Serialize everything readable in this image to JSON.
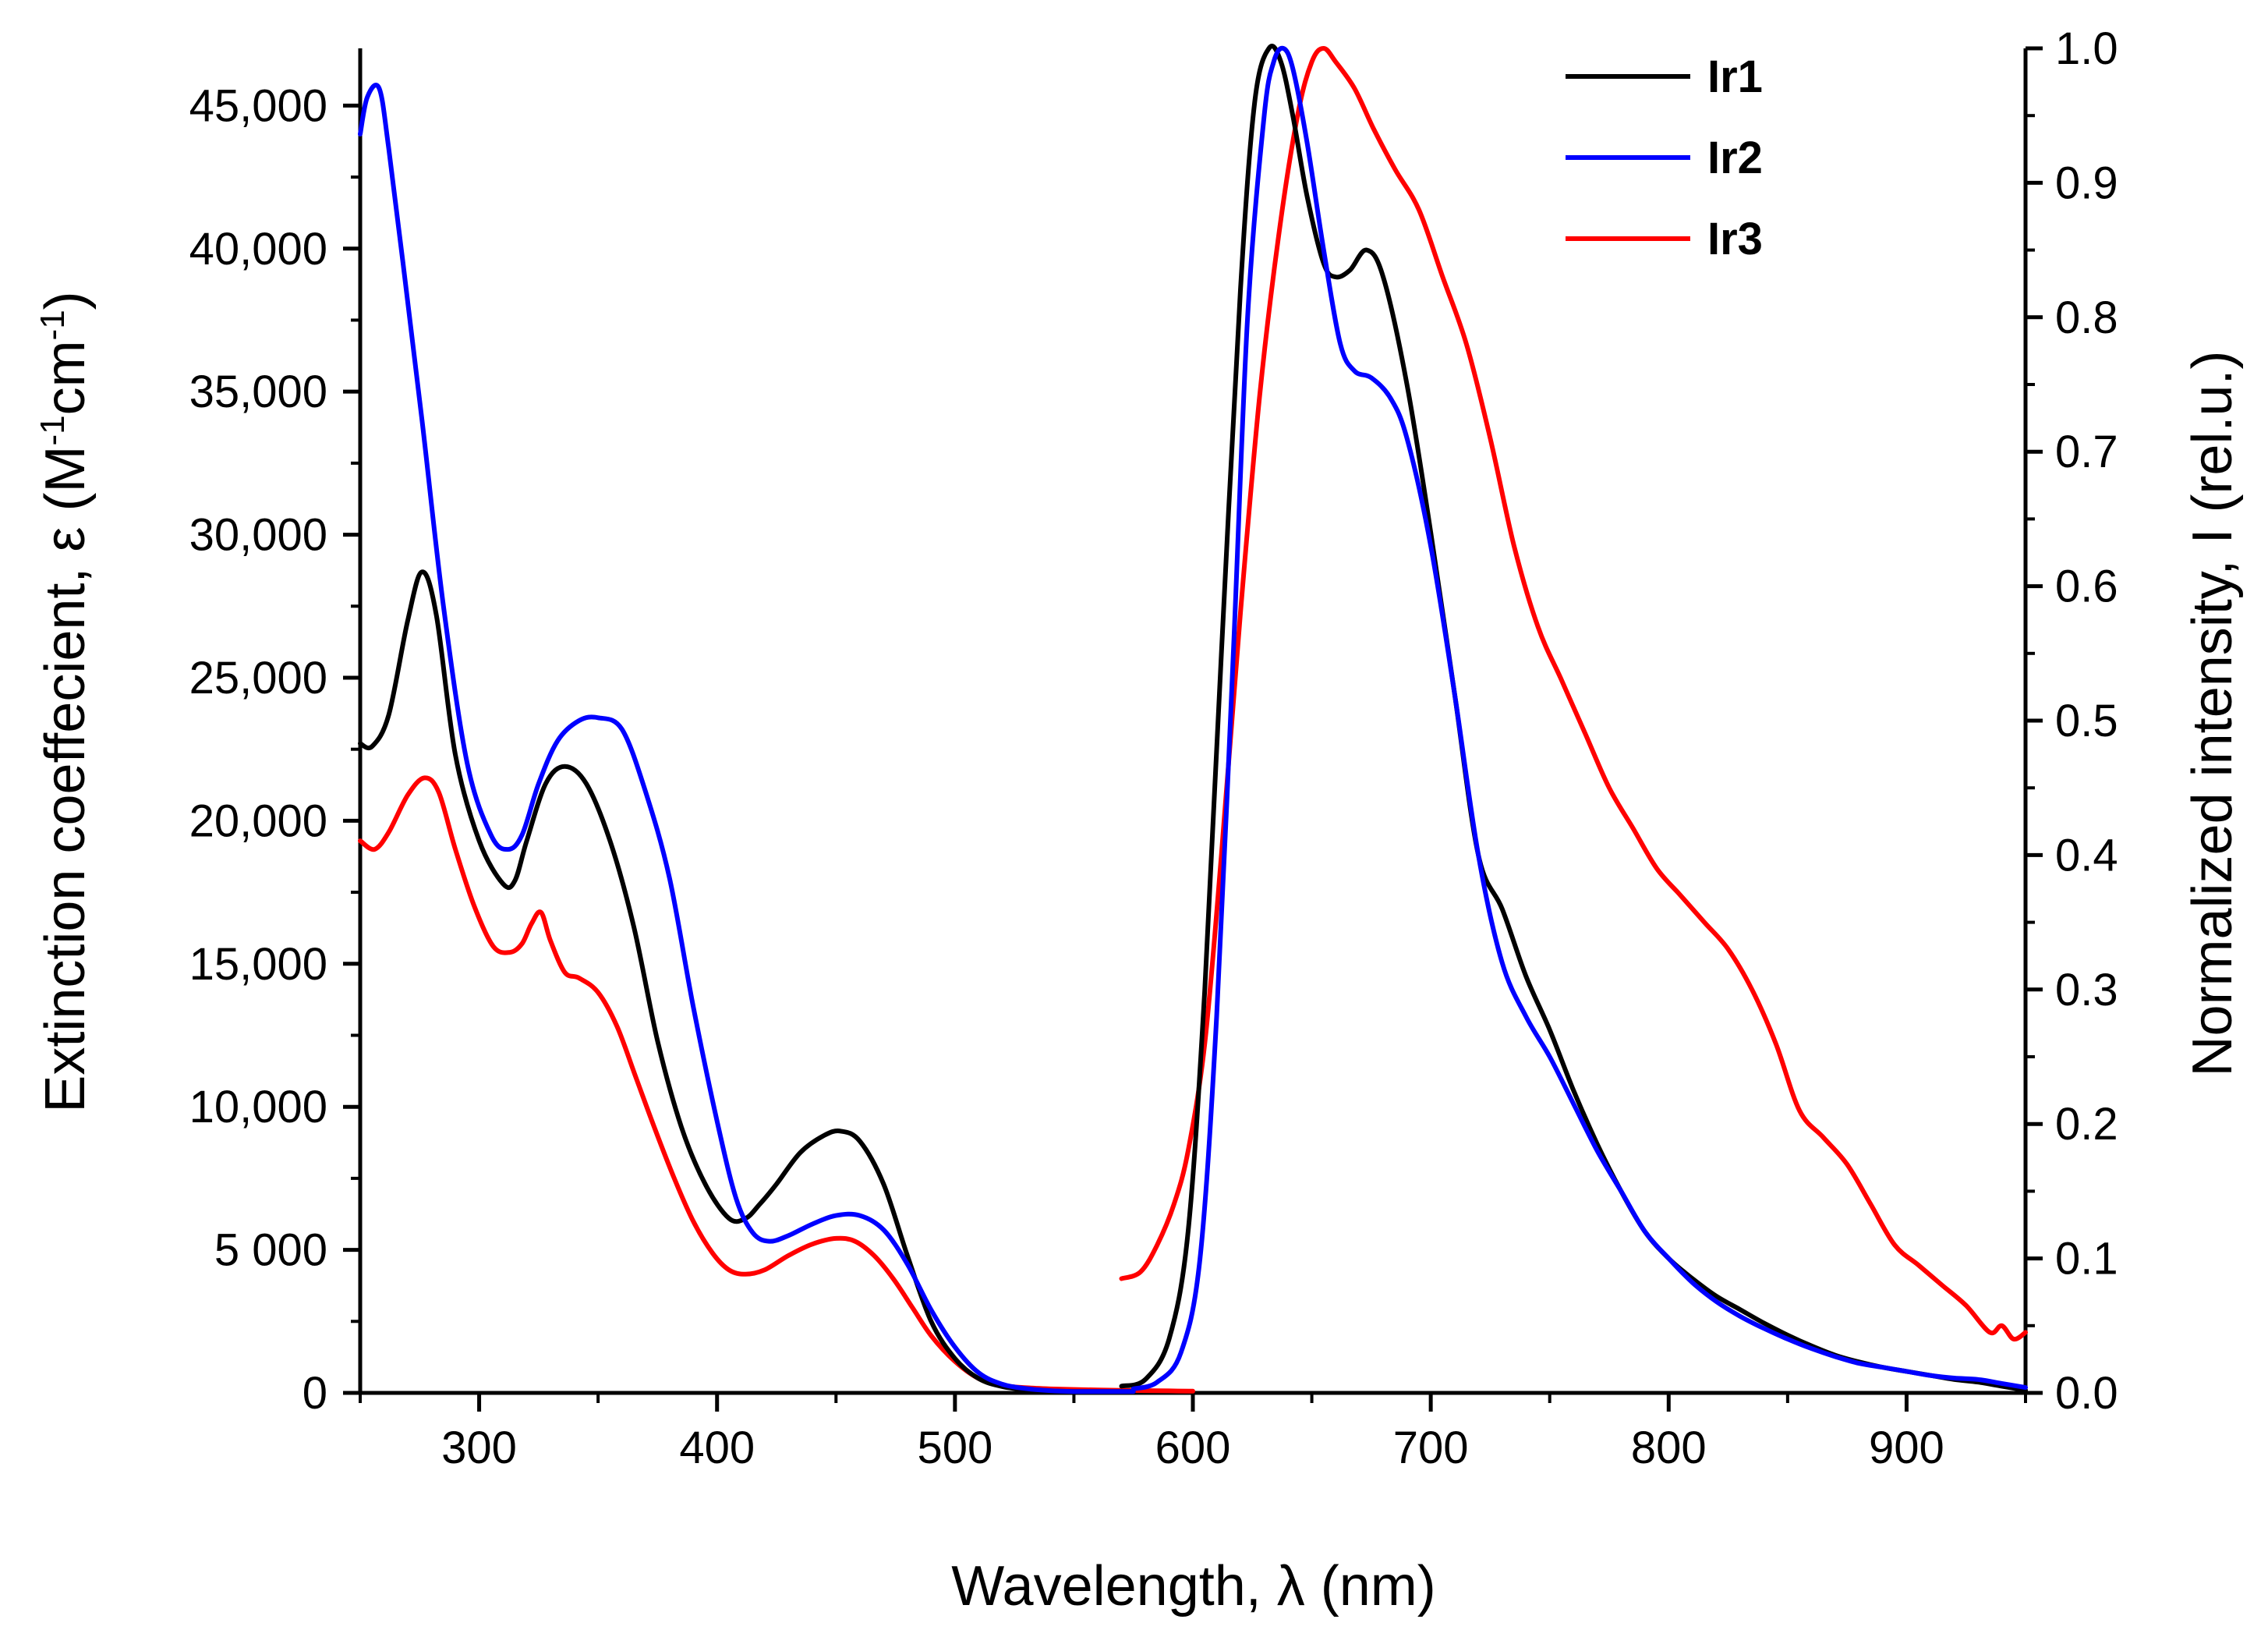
{
  "chart_data": {
    "type": "line",
    "title": "",
    "xlabel": "Wavelength, λ (nm)",
    "ylabel_left": {
      "prefix": "Extinction coeffecient, ε (M",
      "sup1": "-1",
      "mid": "cm",
      "sup2": "-1",
      "suffix": ")"
    },
    "ylabel_right": "Normalized intensity, I (rel.u.)",
    "xlim": [
      250,
      950
    ],
    "ylim_left": [
      0,
      47000
    ],
    "ylim_right": [
      0,
      1.0
    ],
    "x_ticks": [
      300,
      400,
      500,
      600,
      700,
      800,
      900
    ],
    "x_tick_labels": [
      "300",
      "400",
      "500",
      "600",
      "700",
      "800",
      "900"
    ],
    "y_left_ticks": [
      0,
      5000,
      10000,
      15000,
      20000,
      25000,
      30000,
      35000,
      40000,
      45000
    ],
    "y_left_tick_labels": [
      "0",
      "5 000",
      "10,000",
      "15,000",
      "20,000",
      "25,000",
      "30,000",
      "35,000",
      "40,000",
      "45,000"
    ],
    "y_right_ticks": [
      0,
      0.1,
      0.2,
      0.3,
      0.4,
      0.5,
      0.6,
      0.7,
      0.8,
      0.9,
      1.0
    ],
    "y_right_tick_labels": [
      "0.0",
      "0.1",
      "0.2",
      "0.3",
      "0.4",
      "0.5",
      "0.6",
      "0.7",
      "0.8",
      "0.9",
      "1.0"
    ],
    "grid": false,
    "legend_position": "top-right",
    "series": [
      {
        "name": "Ir1",
        "color": "#000000",
        "absorption": {
          "x": [
            250,
            255,
            262,
            270,
            276,
            282,
            290,
            300,
            310,
            315,
            320,
            328,
            336,
            345,
            355,
            365,
            375,
            385,
            395,
            405,
            412,
            418,
            425,
            435,
            445,
            452,
            460,
            470,
            480,
            490,
            500,
            510,
            520,
            530,
            540,
            550,
            560,
            570,
            575
          ],
          "y": [
            22700,
            22600,
            23700,
            27000,
            28700,
            27200,
            22300,
            19300,
            17800,
            17900,
            19300,
            21300,
            21900,
            21300,
            19300,
            16300,
            12300,
            9300,
            7300,
            6100,
            6100,
            6600,
            7300,
            8400,
            9000,
            9150,
            8800,
            7300,
            4800,
            2500,
            1200,
            500,
            220,
            120,
            70,
            50,
            50,
            50,
            50
          ]
        },
        "emission": {
          "x": [
            570,
            580,
            590,
            598,
            605,
            612,
            620,
            626,
            632,
            637,
            642,
            648,
            655,
            660,
            666,
            673,
            680,
            690,
            700,
            710,
            720,
            730,
            740,
            750,
            760,
            770,
            780,
            790,
            800,
            810,
            820,
            830,
            840,
            850,
            860,
            870,
            880,
            890,
            900,
            910,
            920,
            930,
            940,
            950
          ],
          "y": [
            0.005,
            0.01,
            0.04,
            0.12,
            0.3,
            0.55,
            0.82,
            0.96,
            1.0,
            0.99,
            0.95,
            0.89,
            0.84,
            0.83,
            0.835,
            0.85,
            0.83,
            0.75,
            0.64,
            0.52,
            0.4,
            0.36,
            0.31,
            0.27,
            0.225,
            0.185,
            0.15,
            0.12,
            0.1,
            0.085,
            0.072,
            0.062,
            0.052,
            0.043,
            0.035,
            0.028,
            0.023,
            0.019,
            0.016,
            0.013,
            0.01,
            0.008,
            0.005,
            0.002
          ]
        }
      },
      {
        "name": "Ir2",
        "color": "#0000ff",
        "absorption": {
          "x": [
            250,
            253,
            258,
            262,
            268,
            276,
            285,
            295,
            305,
            312,
            318,
            325,
            333,
            342,
            350,
            360,
            370,
            380,
            390,
            400,
            408,
            415,
            422,
            430,
            440,
            450,
            460,
            470,
            480,
            490,
            500,
            510,
            520,
            530,
            540,
            550,
            560,
            570,
            575
          ],
          "y": [
            44000,
            45300,
            45600,
            43500,
            39500,
            34000,
            27500,
            22000,
            19500,
            19000,
            19500,
            21300,
            22800,
            23500,
            23600,
            23200,
            21000,
            18000,
            13500,
            9500,
            6800,
            5600,
            5300,
            5500,
            5900,
            6200,
            6200,
            5700,
            4500,
            2900,
            1600,
            700,
            300,
            150,
            80,
            50,
            50,
            50,
            50
          ]
        },
        "emission": {
          "x": [
            575,
            585,
            595,
            603,
            610,
            617,
            623,
            630,
            634,
            638,
            642,
            648,
            655,
            662,
            668,
            675,
            683,
            690,
            700,
            710,
            720,
            730,
            740,
            750,
            760,
            770,
            780,
            790,
            800,
            810,
            820,
            830,
            840,
            850,
            860,
            870,
            880,
            890,
            900,
            910,
            920,
            930,
            940,
            950
          ],
          "y": [
            0.003,
            0.008,
            0.03,
            0.1,
            0.28,
            0.55,
            0.8,
            0.95,
            0.99,
            1.0,
            0.985,
            0.93,
            0.85,
            0.78,
            0.76,
            0.755,
            0.74,
            0.71,
            0.63,
            0.52,
            0.4,
            0.32,
            0.28,
            0.25,
            0.215,
            0.18,
            0.15,
            0.12,
            0.1,
            0.082,
            0.068,
            0.057,
            0.048,
            0.04,
            0.033,
            0.027,
            0.022,
            0.019,
            0.016,
            0.013,
            0.011,
            0.01,
            0.007,
            0.004
          ]
        }
      },
      {
        "name": "Ir3",
        "color": "#ff0000",
        "absorption": {
          "x": [
            250,
            256,
            262,
            270,
            277,
            283,
            290,
            298,
            306,
            313,
            318,
            322,
            326,
            330,
            336,
            342,
            350,
            358,
            366,
            374,
            382,
            390,
            398,
            405,
            412,
            420,
            430,
            440,
            450,
            458,
            466,
            474,
            482,
            490,
            500,
            510,
            520,
            530,
            540,
            550,
            560,
            570,
            580,
            590,
            600
          ],
          "y": [
            19300,
            19000,
            19600,
            20900,
            21500,
            21000,
            19000,
            17000,
            15600,
            15400,
            15700,
            16400,
            16800,
            15800,
            14700,
            14500,
            14000,
            12800,
            11000,
            9200,
            7500,
            6000,
            4900,
            4300,
            4150,
            4300,
            4800,
            5200,
            5400,
            5300,
            4800,
            4000,
            3000,
            2000,
            1100,
            500,
            260,
            180,
            140,
            120,
            100,
            90,
            80,
            70,
            60
          ]
        },
        "emission": {
          "x": [
            570,
            578,
            585,
            592,
            598,
            605,
            612,
            620,
            628,
            636,
            644,
            650,
            655,
            660,
            668,
            676,
            685,
            695,
            705,
            715,
            725,
            735,
            745,
            755,
            765,
            775,
            785,
            795,
            805,
            815,
            825,
            835,
            845,
            855,
            865,
            875,
            885,
            895,
            905,
            915,
            925,
            935,
            940,
            945,
            950
          ],
          "y": [
            0.085,
            0.09,
            0.11,
            0.14,
            0.18,
            0.26,
            0.4,
            0.58,
            0.74,
            0.86,
            0.95,
            0.99,
            1.0,
            0.99,
            0.97,
            0.94,
            0.91,
            0.88,
            0.83,
            0.78,
            0.71,
            0.63,
            0.57,
            0.53,
            0.49,
            0.45,
            0.42,
            0.39,
            0.37,
            0.35,
            0.33,
            0.3,
            0.26,
            0.21,
            0.19,
            0.17,
            0.14,
            0.11,
            0.095,
            0.08,
            0.065,
            0.045,
            0.05,
            0.04,
            0.045
          ]
        }
      }
    ]
  }
}
